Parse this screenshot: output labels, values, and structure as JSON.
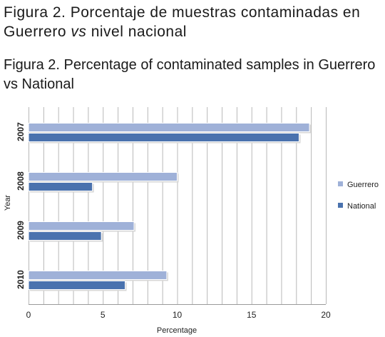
{
  "captions": {
    "spanish_line1": "Figura 2. Porcentaje de muestras contaminadas en",
    "spanish_line2_a": "Guerrero ",
    "spanish_line2_italic": "vs",
    "spanish_line2_b": " nivel nacional",
    "english_line1": "Figura 2. Percentage of contaminated samples in Guerrero",
    "english_line2": "vs National"
  },
  "colors": {
    "guerrero": "#9fb1d8",
    "national": "#4a72ae",
    "grid": "#b8b8b8"
  },
  "chart_data": {
    "type": "bar",
    "orientation": "horizontal",
    "categories": [
      "2007",
      "2008",
      "2009",
      "2010"
    ],
    "series": [
      {
        "name": "Guerrero",
        "values": [
          18.9,
          10.0,
          7.1,
          9.3
        ]
      },
      {
        "name": "National",
        "values": [
          18.2,
          4.3,
          4.9,
          6.5
        ]
      }
    ],
    "xlabel": "Percentage",
    "ylabel": "Year",
    "xlim": [
      0,
      20
    ],
    "xticks": [
      "0",
      "5",
      "10",
      "15",
      "20"
    ],
    "grid": true,
    "legend_position": "right"
  }
}
